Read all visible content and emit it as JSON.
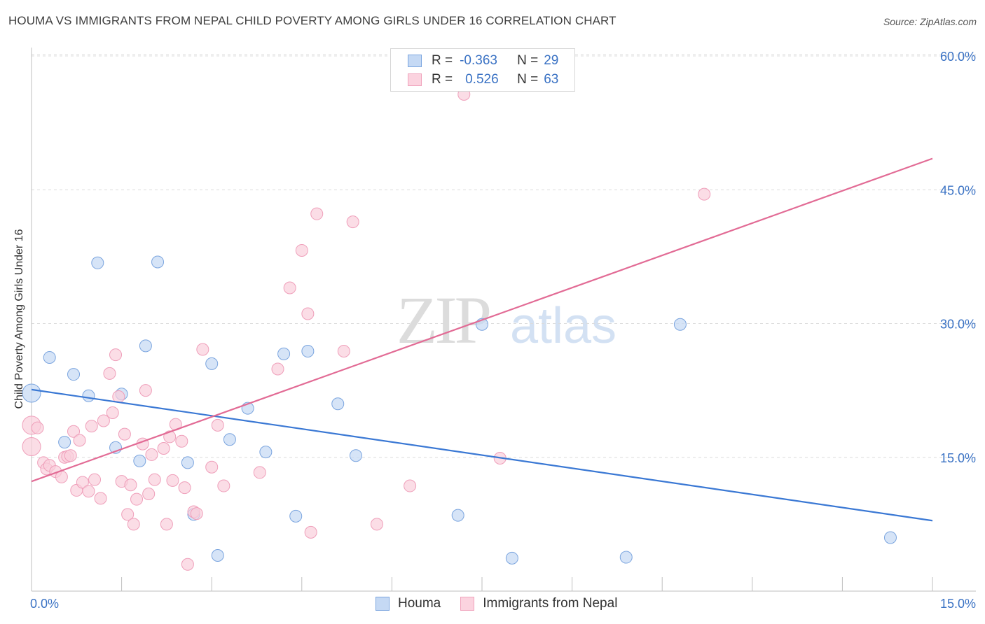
{
  "title": "HOUMA VS IMMIGRANTS FROM NEPAL CHILD POVERTY AMONG GIRLS UNDER 16 CORRELATION CHART",
  "source": "Source: ZipAtlas.com",
  "watermark": {
    "zip": "ZIP",
    "atlas": "atlas"
  },
  "legend": {
    "r_label": "R =",
    "n_label": "N =",
    "rows": [
      {
        "r": "-0.363",
        "n": "29"
      },
      {
        "r": "0.526",
        "n": "63"
      }
    ]
  },
  "chart_data": {
    "type": "scatter",
    "title": "HOUMA VS IMMIGRANTS FROM NEPAL CHILD POVERTY AMONG GIRLS UNDER 16 CORRELATION CHART",
    "xlabel": "",
    "ylabel": "Child Poverty Among Girls Under 16",
    "xlim": [
      0,
      15
    ],
    "ylim": [
      0,
      60
    ],
    "x_tick_labels": [
      "0.0%",
      "15.0%"
    ],
    "y_tick_labels": [
      "15.0%",
      "30.0%",
      "45.0%",
      "60.0%"
    ],
    "y_tick_values": [
      15,
      30,
      45,
      60
    ],
    "grid": true,
    "legend_placement": "top-center",
    "colors": {
      "houma": "#a9c6ef",
      "houma_line": "#3a78d4",
      "nepal": "#f5b8cb",
      "nepal_line": "#e26b95",
      "tick_text": "#3a72c4"
    },
    "series": [
      {
        "name": "Houma",
        "trend": {
          "x": [
            0,
            15
          ],
          "y": [
            22.6,
            7.9
          ]
        },
        "points": [
          [
            0.0,
            22.2
          ],
          [
            0.3,
            26.2
          ],
          [
            0.55,
            16.7
          ],
          [
            0.7,
            24.3
          ],
          [
            0.95,
            21.9
          ],
          [
            1.1,
            36.8
          ],
          [
            1.4,
            16.1
          ],
          [
            1.5,
            22.1
          ],
          [
            1.8,
            14.6
          ],
          [
            1.9,
            27.5
          ],
          [
            2.1,
            36.9
          ],
          [
            2.6,
            14.4
          ],
          [
            2.7,
            8.6
          ],
          [
            3.0,
            25.5
          ],
          [
            3.1,
            4.0
          ],
          [
            3.3,
            17.0
          ],
          [
            3.6,
            20.5
          ],
          [
            3.9,
            15.6
          ],
          [
            4.2,
            26.6
          ],
          [
            4.4,
            8.4
          ],
          [
            4.6,
            26.9
          ],
          [
            5.1,
            21.0
          ],
          [
            5.4,
            15.2
          ],
          [
            7.1,
            8.5
          ],
          [
            7.5,
            29.9
          ],
          [
            8.0,
            3.7
          ],
          [
            9.9,
            3.8
          ],
          [
            10.8,
            29.9
          ],
          [
            14.3,
            6.0
          ]
        ]
      },
      {
        "name": "Immigrants from Nepal",
        "trend": {
          "x": [
            0,
            15
          ],
          "y": [
            12.3,
            48.5
          ]
        },
        "points": [
          [
            0.0,
            18.6
          ],
          [
            0.0,
            16.2
          ],
          [
            0.1,
            18.3
          ],
          [
            0.2,
            14.4
          ],
          [
            0.25,
            13.7
          ],
          [
            0.3,
            14.1
          ],
          [
            0.4,
            13.4
          ],
          [
            0.5,
            12.8
          ],
          [
            0.55,
            15.0
          ],
          [
            0.6,
            15.1
          ],
          [
            0.65,
            15.2
          ],
          [
            0.7,
            17.9
          ],
          [
            0.75,
            11.3
          ],
          [
            0.8,
            16.9
          ],
          [
            0.85,
            12.2
          ],
          [
            0.95,
            11.2
          ],
          [
            1.0,
            18.5
          ],
          [
            1.05,
            12.5
          ],
          [
            1.15,
            10.4
          ],
          [
            1.2,
            19.1
          ],
          [
            1.3,
            24.4
          ],
          [
            1.35,
            20.0
          ],
          [
            1.4,
            26.5
          ],
          [
            1.5,
            12.3
          ],
          [
            1.55,
            17.6
          ],
          [
            1.6,
            8.6
          ],
          [
            1.65,
            11.9
          ],
          [
            1.7,
            7.5
          ],
          [
            1.75,
            10.3
          ],
          [
            1.85,
            16.5
          ],
          [
            1.9,
            22.5
          ],
          [
            1.95,
            10.9
          ],
          [
            2.0,
            15.3
          ],
          [
            2.05,
            12.5
          ],
          [
            2.2,
            16.0
          ],
          [
            2.25,
            7.5
          ],
          [
            2.3,
            17.3
          ],
          [
            2.35,
            12.4
          ],
          [
            2.4,
            18.7
          ],
          [
            2.5,
            16.8
          ],
          [
            2.55,
            11.6
          ],
          [
            2.6,
            3.0
          ],
          [
            2.7,
            8.9
          ],
          [
            2.85,
            27.1
          ],
          [
            3.0,
            13.9
          ],
          [
            3.1,
            18.6
          ],
          [
            3.2,
            11.8
          ],
          [
            3.8,
            13.3
          ],
          [
            4.1,
            24.9
          ],
          [
            4.3,
            34.0
          ],
          [
            4.5,
            38.2
          ],
          [
            4.6,
            31.1
          ],
          [
            4.65,
            6.6
          ],
          [
            4.75,
            42.3
          ],
          [
            5.2,
            26.9
          ],
          [
            5.35,
            41.4
          ],
          [
            5.75,
            7.5
          ],
          [
            6.3,
            11.8
          ],
          [
            7.2,
            55.7
          ],
          [
            7.8,
            14.9
          ],
          [
            11.2,
            44.5
          ],
          [
            2.75,
            8.7
          ],
          [
            1.45,
            21.8
          ]
        ]
      }
    ]
  },
  "bottom_legend": [
    {
      "label": "Houma"
    },
    {
      "label": "Immigrants from Nepal"
    }
  ]
}
